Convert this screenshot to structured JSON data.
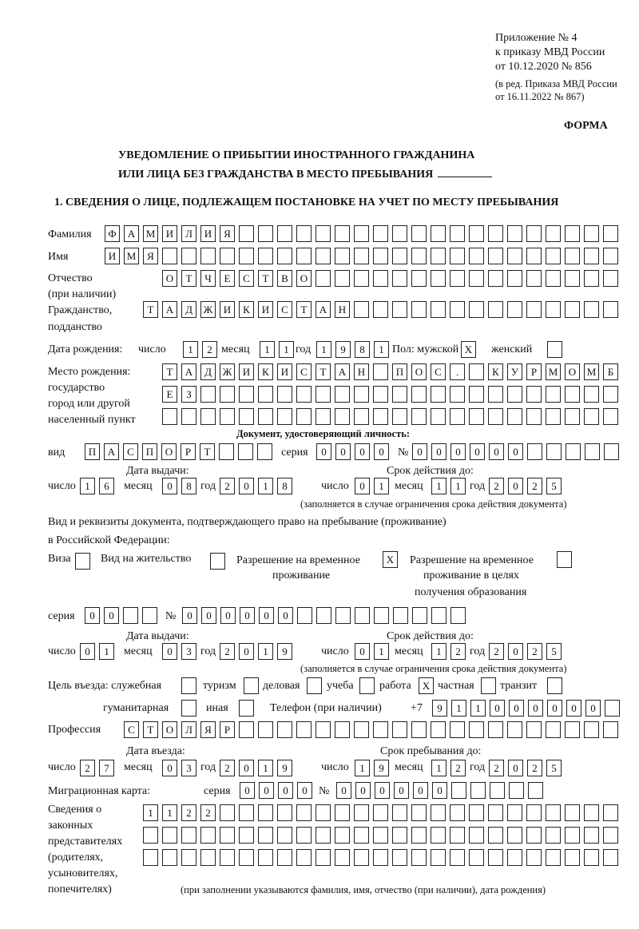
{
  "header": {
    "appendix": [
      "Приложение № 4",
      "к приказу МВД России",
      "от 10.12.2020 № 856"
    ],
    "revision": [
      "(в ред. Приказа МВД России",
      "от 16.11.2022 № 867)"
    ],
    "form_label": "ФОРМА",
    "title_line1": "УВЕДОМЛЕНИЕ О ПРИБЫТИИ ИНОСТРАННОГО ГРАЖДАНИНА",
    "title_line2": "ИЛИ ЛИЦА БЕЗ ГРАЖДАНСТВА В МЕСТО ПРЕБЫВАНИЯ",
    "section1": "1. СВЕДЕНИЯ О ЛИЦЕ, ПОДЛЕЖАЩЕМ ПОСТАНОВКЕ НА УЧЕТ ПО МЕСТУ ПРЕБЫВАНИЯ"
  },
  "labels": {
    "surname": "Фамилия",
    "name": "Имя",
    "patronymic": "Отчество",
    "patronymic_note": "(при наличии)",
    "citizenship1": "Гражданство,",
    "citizenship2": "подданство",
    "birth_date": "Дата рождения:",
    "day": "число",
    "month": "месяц",
    "year": "год",
    "sex": "Пол: мужской",
    "female": "женский",
    "birthplace1": "Место рождения:",
    "birthplace2": "государство",
    "birthplace3": "город или другой",
    "birthplace4": "населенный пункт",
    "id_doc": "Документ, удостоверяющий личность:",
    "kind": "вид",
    "series": "серия",
    "number": "№",
    "issue_date": "Дата выдачи:",
    "valid_until": "Срок действия до:",
    "validity_note": "(заполняется в случае ограничения срока действия документа)",
    "stay_doc1": "Вид и реквизиты документа, подтверждающего право на пребывание (проживание)",
    "stay_doc2": "в Российской Федерации:",
    "visa": "Виза",
    "residence": "Вид на жительство",
    "temp_res1": "Разрешение на временное",
    "temp_res2": "проживание",
    "temp_edu1": "Разрешение на временное",
    "temp_edu2": "проживание в целях",
    "temp_edu3": "получения образования",
    "purpose": "Цель въезда: служебная",
    "tourism": "туризм",
    "business": "деловая",
    "study": "учеба",
    "work": "работа",
    "private": "частная",
    "transit": "транзит",
    "humanitarian": "гуманитарная",
    "other": "иная",
    "phone": "Телефон (при наличии)",
    "phone_prefix": "+7",
    "profession": "Профессия",
    "entry_date": "Дата въезда:",
    "stay_until": "Срок пребывания до:",
    "migration_card": "Миграционная карта:",
    "reps1": "Сведения о",
    "reps2": "законных",
    "reps3": "представителях",
    "reps4": "(родителях,",
    "reps5": "усыновителях,",
    "reps6": "попечителях)",
    "reps_note": "(при заполнении указываются фамилия, имя, отчество (при наличии), дата рождения)"
  },
  "fields": {
    "surname": "ФАМИЛИЯ",
    "name": "ИМЯ",
    "patronymic": "ОТЧЕСТВО",
    "citizenship": "ТАДЖИКИСТАН",
    "birth_day": "12",
    "birth_month": "11",
    "birth_year": "1981",
    "sex_male": "X",
    "sex_female": "",
    "birthplace_row1": "ТАДЖИКИСТАН ПОС. КУРМОМБ",
    "birthplace_row2": "ЕЗ",
    "birthplace_row3": "",
    "id_kind": "ПАСПОРТ",
    "id_series": "0000",
    "id_number": "000000",
    "id_issue_day": "16",
    "id_issue_month": "08",
    "id_issue_year": "2018",
    "id_valid_day": "01",
    "id_valid_month": "11",
    "id_valid_year": "2025",
    "visa": "",
    "residence": "",
    "temp_res": "X",
    "temp_edu": "",
    "stay_series": "00",
    "stay_number": "000000",
    "stay_issue_day": "01",
    "stay_issue_month": "03",
    "stay_issue_year": "2019",
    "stay_valid_day": "01",
    "stay_valid_month": "12",
    "stay_valid_year": "2025",
    "purpose_service": "",
    "purpose_tourism": "",
    "purpose_business": "",
    "purpose_study": "",
    "purpose_work": "X",
    "purpose_private": "",
    "purpose_transit": "",
    "purpose_humanitarian": "",
    "purpose_other": "",
    "phone": "911000000",
    "profession": "СТОЛЯР",
    "entry_day": "27",
    "entry_month": "03",
    "entry_year": "2019",
    "stay_until_day": "19",
    "stay_until_month": "12",
    "stay_until_year": "2025",
    "mc_series": "0000",
    "mc_number": "000000",
    "reps_row1": "1122",
    "reps_row2": "",
    "reps_row3": ""
  }
}
